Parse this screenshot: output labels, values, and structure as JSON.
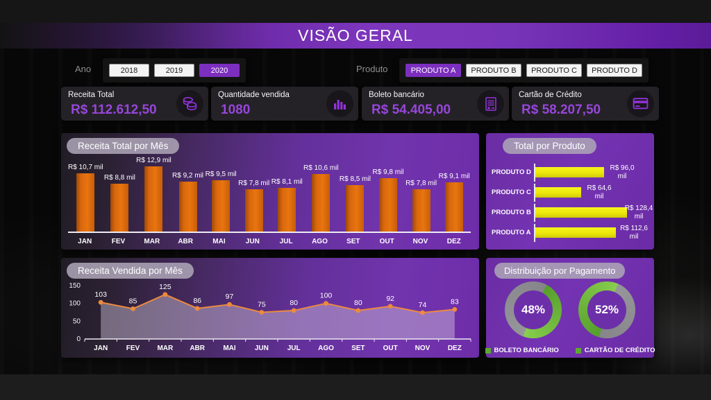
{
  "header": {
    "title": "VISÃO GERAL"
  },
  "filters": {
    "year_label": "Ano",
    "years": [
      {
        "label": "2018",
        "selected": false
      },
      {
        "label": "2019",
        "selected": false
      },
      {
        "label": "2020",
        "selected": true
      }
    ],
    "product_label": "Produto",
    "products": [
      {
        "label": "PRODUTO A",
        "selected": true
      },
      {
        "label": "PRODUTO B",
        "selected": false
      },
      {
        "label": "PRODUTO C",
        "selected": false
      },
      {
        "label": "PRODUTO D",
        "selected": false
      }
    ]
  },
  "kpis": [
    {
      "label": "Receita Total",
      "value": "R$ 112.612,50",
      "icon": "coins-icon"
    },
    {
      "label": "Quantidade vendida",
      "value": "1080",
      "icon": "column-chart-icon"
    },
    {
      "label": "Boleto bancário",
      "value": "R$ 54.405,00",
      "icon": "invoice-icon"
    },
    {
      "label": "Cartão de Crédito",
      "value": "R$ 58.207,50",
      "icon": "credit-card-icon"
    }
  ],
  "chart_data": [
    {
      "type": "bar",
      "title": "Receita Total por Mês",
      "categories": [
        "JAN",
        "FEV",
        "MAR",
        "ABR",
        "MAI",
        "JUN",
        "JUL",
        "AGO",
        "SET",
        "OUT",
        "NOV",
        "DEZ"
      ],
      "values": [
        10.7,
        8.8,
        12.9,
        9.2,
        9.5,
        7.8,
        8.1,
        10.6,
        8.5,
        9.8,
        7.8,
        9.1
      ],
      "labels": [
        "R$ 10,7 mil",
        "R$ 8,8 mil",
        "R$ 12,9 mil",
        "R$ 9,2 mil",
        "R$ 9,5 mil",
        "R$ 7,8 mil",
        "R$ 8,1 mil",
        "R$ 10,6 mil",
        "R$ 8,5 mil",
        "R$ 9,8 mil",
        "R$ 7,8 mil",
        "R$ 9,1 mil"
      ],
      "unit": "mil (R$)",
      "ylim": [
        0,
        13
      ],
      "bar_color": "#e1690e"
    },
    {
      "type": "bar",
      "orientation": "horizontal",
      "title": "Total por Produto",
      "categories": [
        "PRODUTO D",
        "PRODUTO C",
        "PRODUTO B",
        "PRODUTO A"
      ],
      "values": [
        96.0,
        64.6,
        128.4,
        112.6
      ],
      "labels": [
        "R$ 96,0 mil",
        "R$ 64,6 mil",
        "R$ 128,4 mil",
        "R$ 112,6 mil"
      ],
      "unit": "mil (R$)",
      "xlim": [
        0,
        146
      ],
      "bar_color": "#f0ee10"
    },
    {
      "type": "line",
      "title": "Receita Vendida por Mês",
      "categories": [
        "JAN",
        "FEV",
        "MAR",
        "ABR",
        "MAI",
        "JUN",
        "JUL",
        "AGO",
        "SET",
        "OUT",
        "NOV",
        "DEZ"
      ],
      "values": [
        103,
        85,
        125,
        86,
        97,
        75,
        80,
        100,
        80,
        92,
        74,
        83
      ],
      "yticks": [
        150,
        100,
        50,
        0
      ],
      "ylim": [
        0,
        150
      ],
      "line_color": "#ed8a3e",
      "area_fill": "rgba(208,198,218,0.45)"
    },
    {
      "type": "pie",
      "title": "Distribuição por Pagamento",
      "slices": [
        {
          "label": "BOLETO BANCÁRIO",
          "value": 48,
          "display": "48%"
        },
        {
          "label": "CARTÃO DE CRÉDITO",
          "value": 52,
          "display": "52%"
        }
      ],
      "slice_color": "#6fbc3f",
      "remainder_color": "#8f8f94",
      "legend_position": "bottom"
    }
  ],
  "colors": {
    "accent_purple": "#7c2fbe",
    "kpi_value_purple": "#9746d9",
    "bar_orange": "#e1690e",
    "bar_yellow": "#f0ee10",
    "donut_green": "#6fbc3f",
    "donut_gray": "#8f8f94"
  }
}
